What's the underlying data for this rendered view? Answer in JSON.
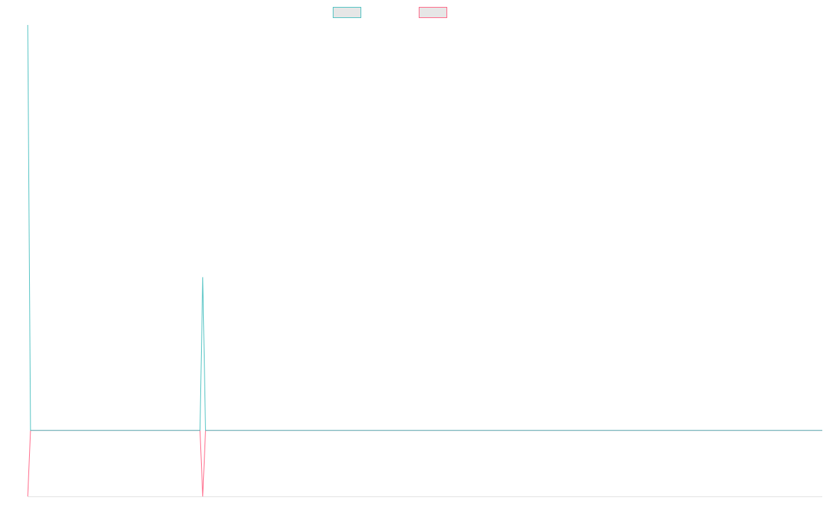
{
  "chart_data": {
    "type": "line",
    "categories": [
      null,
      null,
      null,
      null,
      null,
      null,
      null,
      null,
      null,
      null,
      null,
      null,
      null,
      null,
      null,
      null,
      null,
      null,
      null,
      null,
      null,
      null,
      null,
      null,
      null,
      null,
      null,
      null,
      null,
      null,
      null,
      null,
      null,
      null,
      null,
      null,
      null,
      null,
      null,
      null,
      null,
      null,
      null,
      null,
      null,
      null,
      null,
      null,
      null,
      null,
      null,
      null,
      null,
      null,
      null,
      null,
      null,
      null,
      null,
      null,
      null,
      null,
      null,
      null,
      null,
      null,
      null,
      null,
      null,
      null,
      null,
      null,
      null,
      null,
      null,
      null,
      null,
      null,
      null,
      null,
      null,
      null,
      null,
      null,
      null,
      null,
      null,
      null,
      null,
      null,
      null,
      null,
      null,
      null,
      null,
      null,
      null,
      null,
      null,
      null,
      null,
      null,
      null,
      null,
      null,
      null,
      null,
      null,
      null,
      null,
      null,
      null,
      null,
      null,
      null,
      null,
      null,
      null,
      null,
      null,
      null,
      null,
      null,
      null,
      null,
      null,
      null,
      null,
      null,
      null,
      null,
      null,
      null,
      null,
      null,
      null,
      null,
      null,
      null,
      null,
      null,
      null,
      null,
      null,
      null,
      null,
      null,
      null,
      null,
      null,
      null,
      null,
      null,
      null,
      null,
      null,
      null,
      null,
      null,
      null,
      null,
      null,
      null,
      null,
      null,
      null,
      null,
      null,
      null,
      null,
      null,
      null,
      null,
      null,
      null,
      null,
      null,
      null,
      null,
      null,
      null,
      null,
      null,
      null,
      null,
      null,
      null,
      null,
      null,
      null,
      null,
      null,
      null,
      null,
      null,
      null,
      null,
      null,
      null,
      null,
      null,
      null,
      null,
      null,
      null,
      null,
      null,
      null,
      null,
      null,
      null,
      null,
      null,
      null,
      null,
      null,
      null,
      null,
      null,
      null,
      null,
      null,
      null,
      null,
      null,
      null,
      null,
      null,
      null,
      null,
      null,
      null,
      null,
      null,
      null,
      null,
      null,
      null,
      null,
      null,
      null,
      null,
      null,
      null,
      null,
      null,
      null,
      null,
      null,
      null,
      null,
      null,
      null,
      null,
      null,
      null,
      null,
      null,
      null,
      null,
      null,
      null,
      null,
      null,
      null,
      null,
      null,
      null,
      null,
      null,
      null,
      null,
      null,
      null,
      null,
      null,
      null,
      null,
      null,
      null,
      null,
      null,
      null,
      null,
      null,
      null,
      null
    ],
    "series": [
      {
        "color": "#4bc0c0",
        "values": [
          100,
          14,
          14,
          14,
          14,
          14,
          14,
          14,
          14,
          14,
          14,
          14,
          14,
          14,
          14,
          14,
          14,
          14,
          14,
          14,
          14,
          14,
          14,
          14,
          14,
          14,
          14,
          14,
          14,
          14,
          14,
          14,
          14,
          14,
          14,
          14,
          14,
          14,
          14,
          14,
          14,
          14,
          14,
          14,
          14,
          14,
          14,
          14,
          14,
          14,
          14,
          14,
          14,
          14,
          14,
          14,
          14,
          14,
          14,
          14,
          14,
          14,
          14,
          46.5,
          14,
          14,
          14,
          14,
          14,
          14,
          14,
          14,
          14,
          14,
          14,
          14,
          14,
          14,
          14,
          14,
          14,
          14,
          14,
          14,
          14,
          14,
          14,
          14,
          14,
          14,
          14,
          14,
          14,
          14,
          14,
          14,
          14,
          14,
          14,
          14,
          14,
          14,
          14,
          14,
          14,
          14,
          14,
          14,
          14,
          14,
          14,
          14,
          14,
          14,
          14,
          14,
          14,
          14,
          14,
          14,
          14,
          14,
          14,
          14,
          14,
          14,
          14,
          14,
          14,
          14,
          14,
          14,
          14,
          14,
          14,
          14,
          14,
          14,
          14,
          14,
          14,
          14,
          14,
          14,
          14,
          14,
          14,
          14,
          14,
          14,
          14,
          14,
          14,
          14,
          14,
          14,
          14,
          14,
          14,
          14,
          14,
          14,
          14,
          14,
          14,
          14,
          14,
          14,
          14,
          14,
          14,
          14,
          14,
          14,
          14,
          14,
          14,
          14,
          14,
          14,
          14,
          14,
          14,
          14,
          14,
          14,
          14,
          14,
          14,
          14,
          14,
          14,
          14,
          14,
          14,
          14,
          14,
          14,
          14,
          14,
          14,
          14,
          14,
          14,
          14,
          14,
          14,
          14,
          14,
          14,
          14,
          14,
          14,
          14,
          14,
          14,
          14,
          14,
          14,
          14,
          14,
          14,
          14,
          14,
          14,
          14,
          14,
          14,
          14,
          14,
          14,
          14,
          14,
          14,
          14,
          14,
          14,
          14,
          14,
          14,
          14,
          14,
          14,
          14,
          14,
          14,
          14,
          14,
          14,
          14,
          14,
          14,
          14,
          14,
          14,
          14,
          14,
          14,
          14,
          14,
          14,
          14,
          14,
          14,
          14,
          14,
          14,
          14,
          14,
          14,
          14,
          14,
          14,
          14,
          14,
          14,
          14,
          14,
          14,
          14,
          14,
          14,
          14,
          14,
          14,
          14,
          14
        ]
      },
      {
        "color": "#ff6384",
        "values": [
          0,
          14,
          14,
          14,
          14,
          14,
          14,
          14,
          14,
          14,
          14,
          14,
          14,
          14,
          14,
          14,
          14,
          14,
          14,
          14,
          14,
          14,
          14,
          14,
          14,
          14,
          14,
          14,
          14,
          14,
          14,
          14,
          14,
          14,
          14,
          14,
          14,
          14,
          14,
          14,
          14,
          14,
          14,
          14,
          14,
          14,
          14,
          14,
          14,
          14,
          14,
          14,
          14,
          14,
          14,
          14,
          14,
          14,
          14,
          14,
          14,
          14,
          14,
          0,
          14,
          14,
          14,
          14,
          14,
          14,
          14,
          14,
          14,
          14,
          14,
          14,
          14,
          14,
          14,
          14,
          14,
          14,
          14,
          14,
          14,
          14,
          14,
          14,
          14,
          14,
          14,
          14,
          14,
          14,
          14,
          14,
          14,
          14,
          14,
          14,
          14,
          14,
          14,
          14,
          14,
          14,
          14,
          14,
          14,
          14,
          14,
          14,
          14,
          14,
          14,
          14,
          14,
          14,
          14,
          14,
          14,
          14,
          14,
          14,
          14,
          14,
          14,
          14,
          14,
          14,
          14,
          14,
          14,
          14,
          14,
          14,
          14,
          14,
          14,
          14,
          14,
          14,
          14,
          14,
          14,
          14,
          14,
          14,
          14,
          14,
          14,
          14,
          14,
          14,
          14,
          14,
          14,
          14,
          14,
          14,
          14,
          14,
          14,
          14,
          14,
          14,
          14,
          14,
          14,
          14,
          14,
          14,
          14,
          14,
          14,
          14,
          14,
          14,
          14,
          14,
          14,
          14,
          14,
          14,
          14,
          14,
          14,
          14,
          14,
          14,
          14,
          14,
          14,
          14,
          14,
          14,
          14,
          14,
          14,
          14,
          14,
          14,
          14,
          14,
          14,
          14,
          14,
          14,
          14,
          14,
          14,
          14,
          14,
          14,
          14,
          14,
          14,
          14,
          14,
          14,
          14,
          14,
          14,
          14,
          14,
          14,
          14,
          14,
          14,
          14,
          14,
          14,
          14,
          14,
          14,
          14,
          14,
          14,
          14,
          14,
          14,
          14,
          14,
          14,
          14,
          14,
          14,
          14,
          14,
          14,
          14,
          14,
          14,
          14,
          14,
          14,
          14,
          14,
          14,
          14,
          14,
          14,
          14,
          14,
          14,
          14,
          14,
          14,
          14,
          14,
          14,
          14,
          14,
          14,
          14,
          14,
          14,
          14,
          14,
          14,
          14,
          14,
          14,
          14,
          14,
          14,
          14
        ]
      }
    ],
    "ylim": [
      0,
      100
    ]
  }
}
